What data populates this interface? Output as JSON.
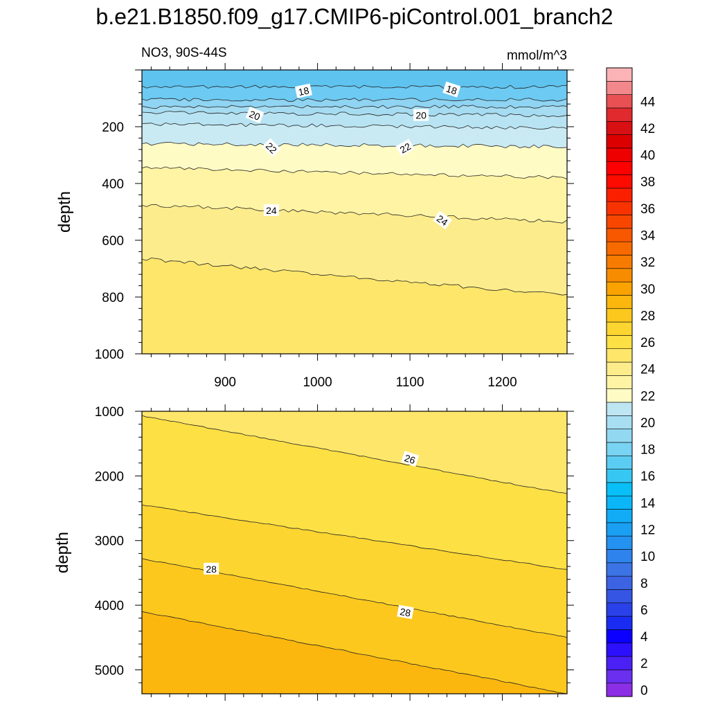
{
  "title": "b.e21.B1850.f09_g17.CMIP6-piControl.001_branch2",
  "subtitle_left": "NO3, 90S-44S",
  "subtitle_right": "mmol/m^3",
  "chart_data": [
    {
      "type": "contour",
      "panel": "upper",
      "xlabel": "",
      "ylabel": "depth",
      "xlim": [
        810,
        1270
      ],
      "ylim": [
        1000,
        0
      ],
      "xticks": [
        900,
        1000,
        1100,
        1200
      ],
      "yticks": [
        200,
        400,
        600,
        800,
        1000
      ],
      "contour_lines": [
        {
          "level": 17,
          "depth_start": 60,
          "depth_end": 60
        },
        {
          "level": 18,
          "depth_start": 105,
          "depth_end": 105
        },
        {
          "level": 19,
          "depth_start": 130,
          "depth_end": 130
        },
        {
          "level": 20,
          "depth_start": 150,
          "depth_end": 160
        },
        {
          "level": 21,
          "depth_start": 190,
          "depth_end": 205
        },
        {
          "level": 22,
          "depth_start": 260,
          "depth_end": 270
        },
        {
          "level": 23,
          "depth_start": 345,
          "depth_end": 380
        },
        {
          "level": 24,
          "depth_start": 475,
          "depth_end": 535
        },
        {
          "level": 25,
          "depth_start": 665,
          "depth_end": 795
        }
      ],
      "contour_labels": [
        {
          "text": "18",
          "x": 985,
          "depth": 75
        },
        {
          "text": "18",
          "x": 1145,
          "depth": 70
        },
        {
          "text": "20",
          "x": 932,
          "depth": 160
        },
        {
          "text": "20",
          "x": 1112,
          "depth": 160
        },
        {
          "text": "22",
          "x": 950,
          "depth": 275
        },
        {
          "text": "22",
          "x": 1095,
          "depth": 275
        },
        {
          "text": "24",
          "x": 950,
          "depth": 495
        },
        {
          "text": "24",
          "x": 1135,
          "depth": 530
        }
      ]
    },
    {
      "type": "contour",
      "panel": "lower",
      "xlabel": "",
      "ylabel": "depth",
      "xlim": [
        810,
        1270
      ],
      "ylim": [
        5370,
        1000
      ],
      "yticks": [
        1000,
        2000,
        3000,
        4000,
        5000
      ],
      "contour_lines": [
        {
          "level": 26,
          "depth_start": 1070,
          "depth_end": 2280
        },
        {
          "level": 27,
          "depth_start": 2450,
          "depth_end": 3450
        },
        {
          "level": 28,
          "depth_start": 3280,
          "depth_end": 4500
        },
        {
          "level": 29,
          "depth_start": 4100,
          "depth_end": 5370
        }
      ],
      "contour_labels": [
        {
          "text": "26",
          "x": 1100,
          "depth": 1740
        },
        {
          "text": "28",
          "x": 885,
          "depth": 3440
        },
        {
          "text": "28",
          "x": 1095,
          "depth": 4110
        }
      ]
    },
    {
      "type": "colorbar",
      "levels_min": 0,
      "levels_max": 46,
      "interval": 1,
      "tick_labels": [
        "0",
        "2",
        "4",
        "6",
        "8",
        "10",
        "12",
        "14",
        "16",
        "18",
        "20",
        "22",
        "24",
        "26",
        "28",
        "30",
        "32",
        "34",
        "36",
        "38",
        "40",
        "42",
        "44"
      ]
    }
  ],
  "colors": {
    "c17": "#6ccaf3",
    "c18": "#8fd4f2",
    "c19": "#a6dcf1",
    "c20": "#b8e3f2",
    "c21": "#c9eaf3",
    "c22": "#fffbc5",
    "c23": "#fff4a4",
    "c24": "#fdec8c",
    "c25": "#fde66a",
    "c26": "#fde044",
    "c27": "#fcd530",
    "c28": "#fcc81e",
    "c29": "#fbb70e"
  }
}
